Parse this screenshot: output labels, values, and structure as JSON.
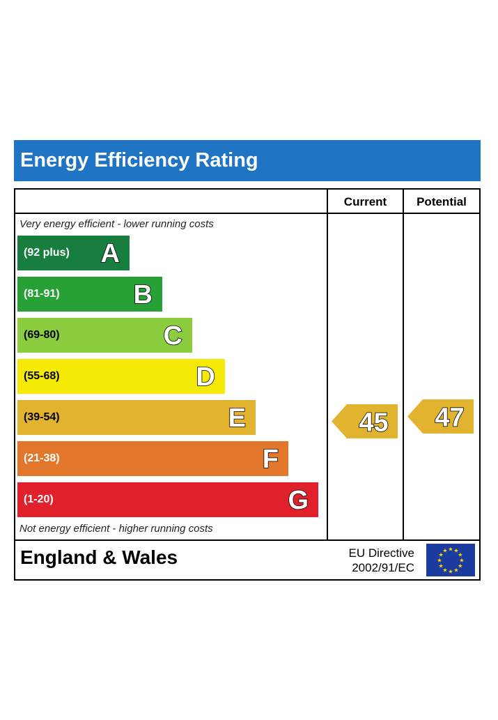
{
  "header": {
    "title": "Energy Efficiency Rating"
  },
  "columns": {
    "current": "Current",
    "potential": "Potential"
  },
  "notes": {
    "top": "Very energy efficient - lower running costs",
    "bottom": "Not energy efficient - higher running costs"
  },
  "footer": {
    "region": "England & Wales",
    "directive_line1": "EU Directive",
    "directive_line2": "2002/91/EC",
    "flag_icon": "eu-flag-icon"
  },
  "chart_data": {
    "type": "bar",
    "bands": [
      {
        "label": "A",
        "range": "(92 plus)",
        "color": "#177e3f",
        "bar_length": 0.24
      },
      {
        "label": "B",
        "range": "(81-91)",
        "color": "#27a035",
        "bar_length": 0.31
      },
      {
        "label": "C",
        "range": "(69-80)",
        "color": "#8ccc3f",
        "bar_length": 0.375
      },
      {
        "label": "D",
        "range": "(55-68)",
        "color": "#f5ea05",
        "bar_length": 0.445
      },
      {
        "label": "E",
        "range": "(39-54)",
        "color": "#e1b32e",
        "bar_length": 0.51
      },
      {
        "label": "F",
        "range": "(21-38)",
        "color": "#e2762a",
        "bar_length": 0.58
      },
      {
        "label": "G",
        "range": "(1-20)",
        "color": "#e0202a",
        "bar_length": 0.645
      }
    ],
    "current": {
      "value": 45,
      "band": "E",
      "color": "#e1b32e"
    },
    "potential": {
      "value": 47,
      "band": "E",
      "color": "#e1b32e"
    }
  }
}
